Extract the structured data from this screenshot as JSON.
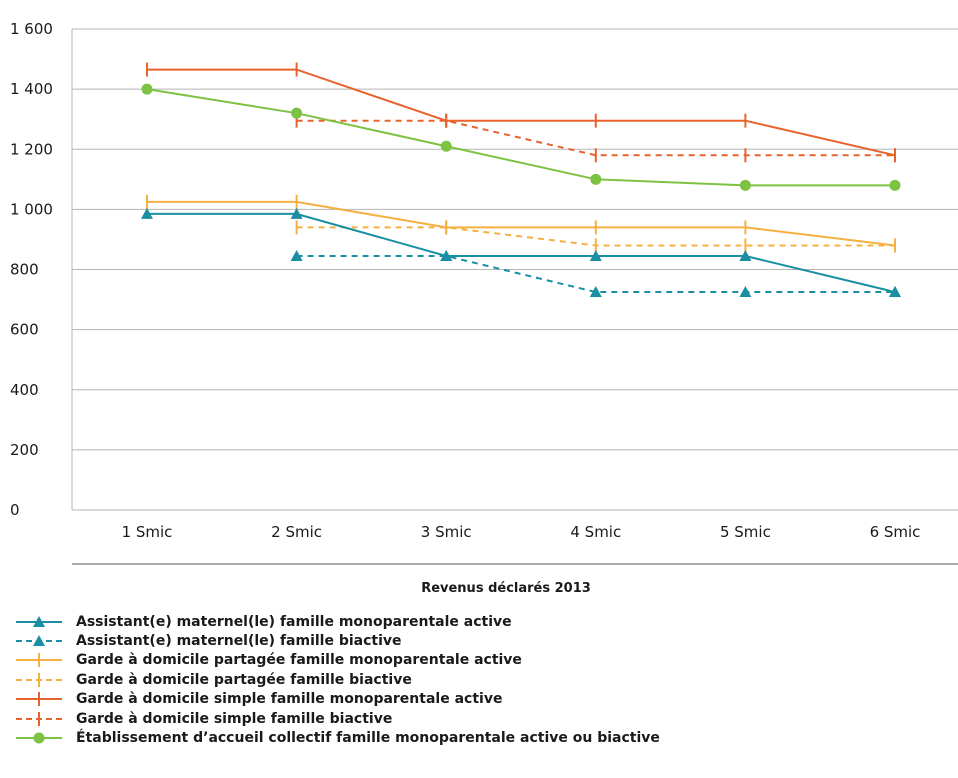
{
  "chart_data": {
    "type": "line",
    "title": "",
    "xlabel": "Revenus déclarés 2013",
    "ylabel": "",
    "categories": [
      "1 Smic",
      "2 Smic",
      "3 Smic",
      "4 Smic",
      "5 Smic",
      "6 Smic"
    ],
    "ylim": [
      0,
      1600
    ],
    "yticks": [
      0,
      200,
      400,
      600,
      800,
      1000,
      1200,
      1400,
      1600
    ],
    "ytick_labels": [
      "0",
      "200",
      "400",
      "600",
      "800",
      "1 000",
      "1 200",
      "1 400",
      "1 600"
    ],
    "grid": "horizontal",
    "legend": "bottom",
    "series": [
      {
        "name": "Assistant(e) maternel(le) famille monoparentale active",
        "color": "#1a8fa3",
        "dash": "solid",
        "marker": "triangle",
        "values": [
          985,
          985,
          845,
          845,
          845,
          725
        ]
      },
      {
        "name": "Assistant(e) maternel(le) famille biactive",
        "color": "#1a8fa3",
        "dash": "dashed",
        "marker": "triangle",
        "values": [
          null,
          845,
          845,
          725,
          725,
          725
        ]
      },
      {
        "name": "Garde à domicile partagée famille monoparentale active",
        "color": "#f5b041",
        "dash": "solid",
        "marker": "tick",
        "values": [
          1025,
          1025,
          940,
          940,
          940,
          880
        ]
      },
      {
        "name": "Garde à domicile partagée famille biactive",
        "color": "#f5b041",
        "dash": "dashed",
        "marker": "tick",
        "values": [
          null,
          940,
          940,
          880,
          880,
          880
        ]
      },
      {
        "name": "Garde à domicile simple famille monoparentale active",
        "color": "#e8622c",
        "dash": "solid",
        "marker": "tick",
        "values": [
          1465,
          1465,
          1295,
          1295,
          1295,
          1180
        ]
      },
      {
        "name": "Garde à domicile simple famille biactive",
        "color": "#e8622c",
        "dash": "dashed",
        "marker": "tick",
        "values": [
          null,
          1295,
          1295,
          1180,
          1180,
          1180
        ]
      },
      {
        "name": "Établissement d’accueil collectif famille monoparentale active ou biactive",
        "color": "#7dc242",
        "dash": "solid",
        "marker": "circle",
        "values": [
          1400,
          1320,
          1210,
          1100,
          1080,
          1080
        ]
      }
    ]
  }
}
